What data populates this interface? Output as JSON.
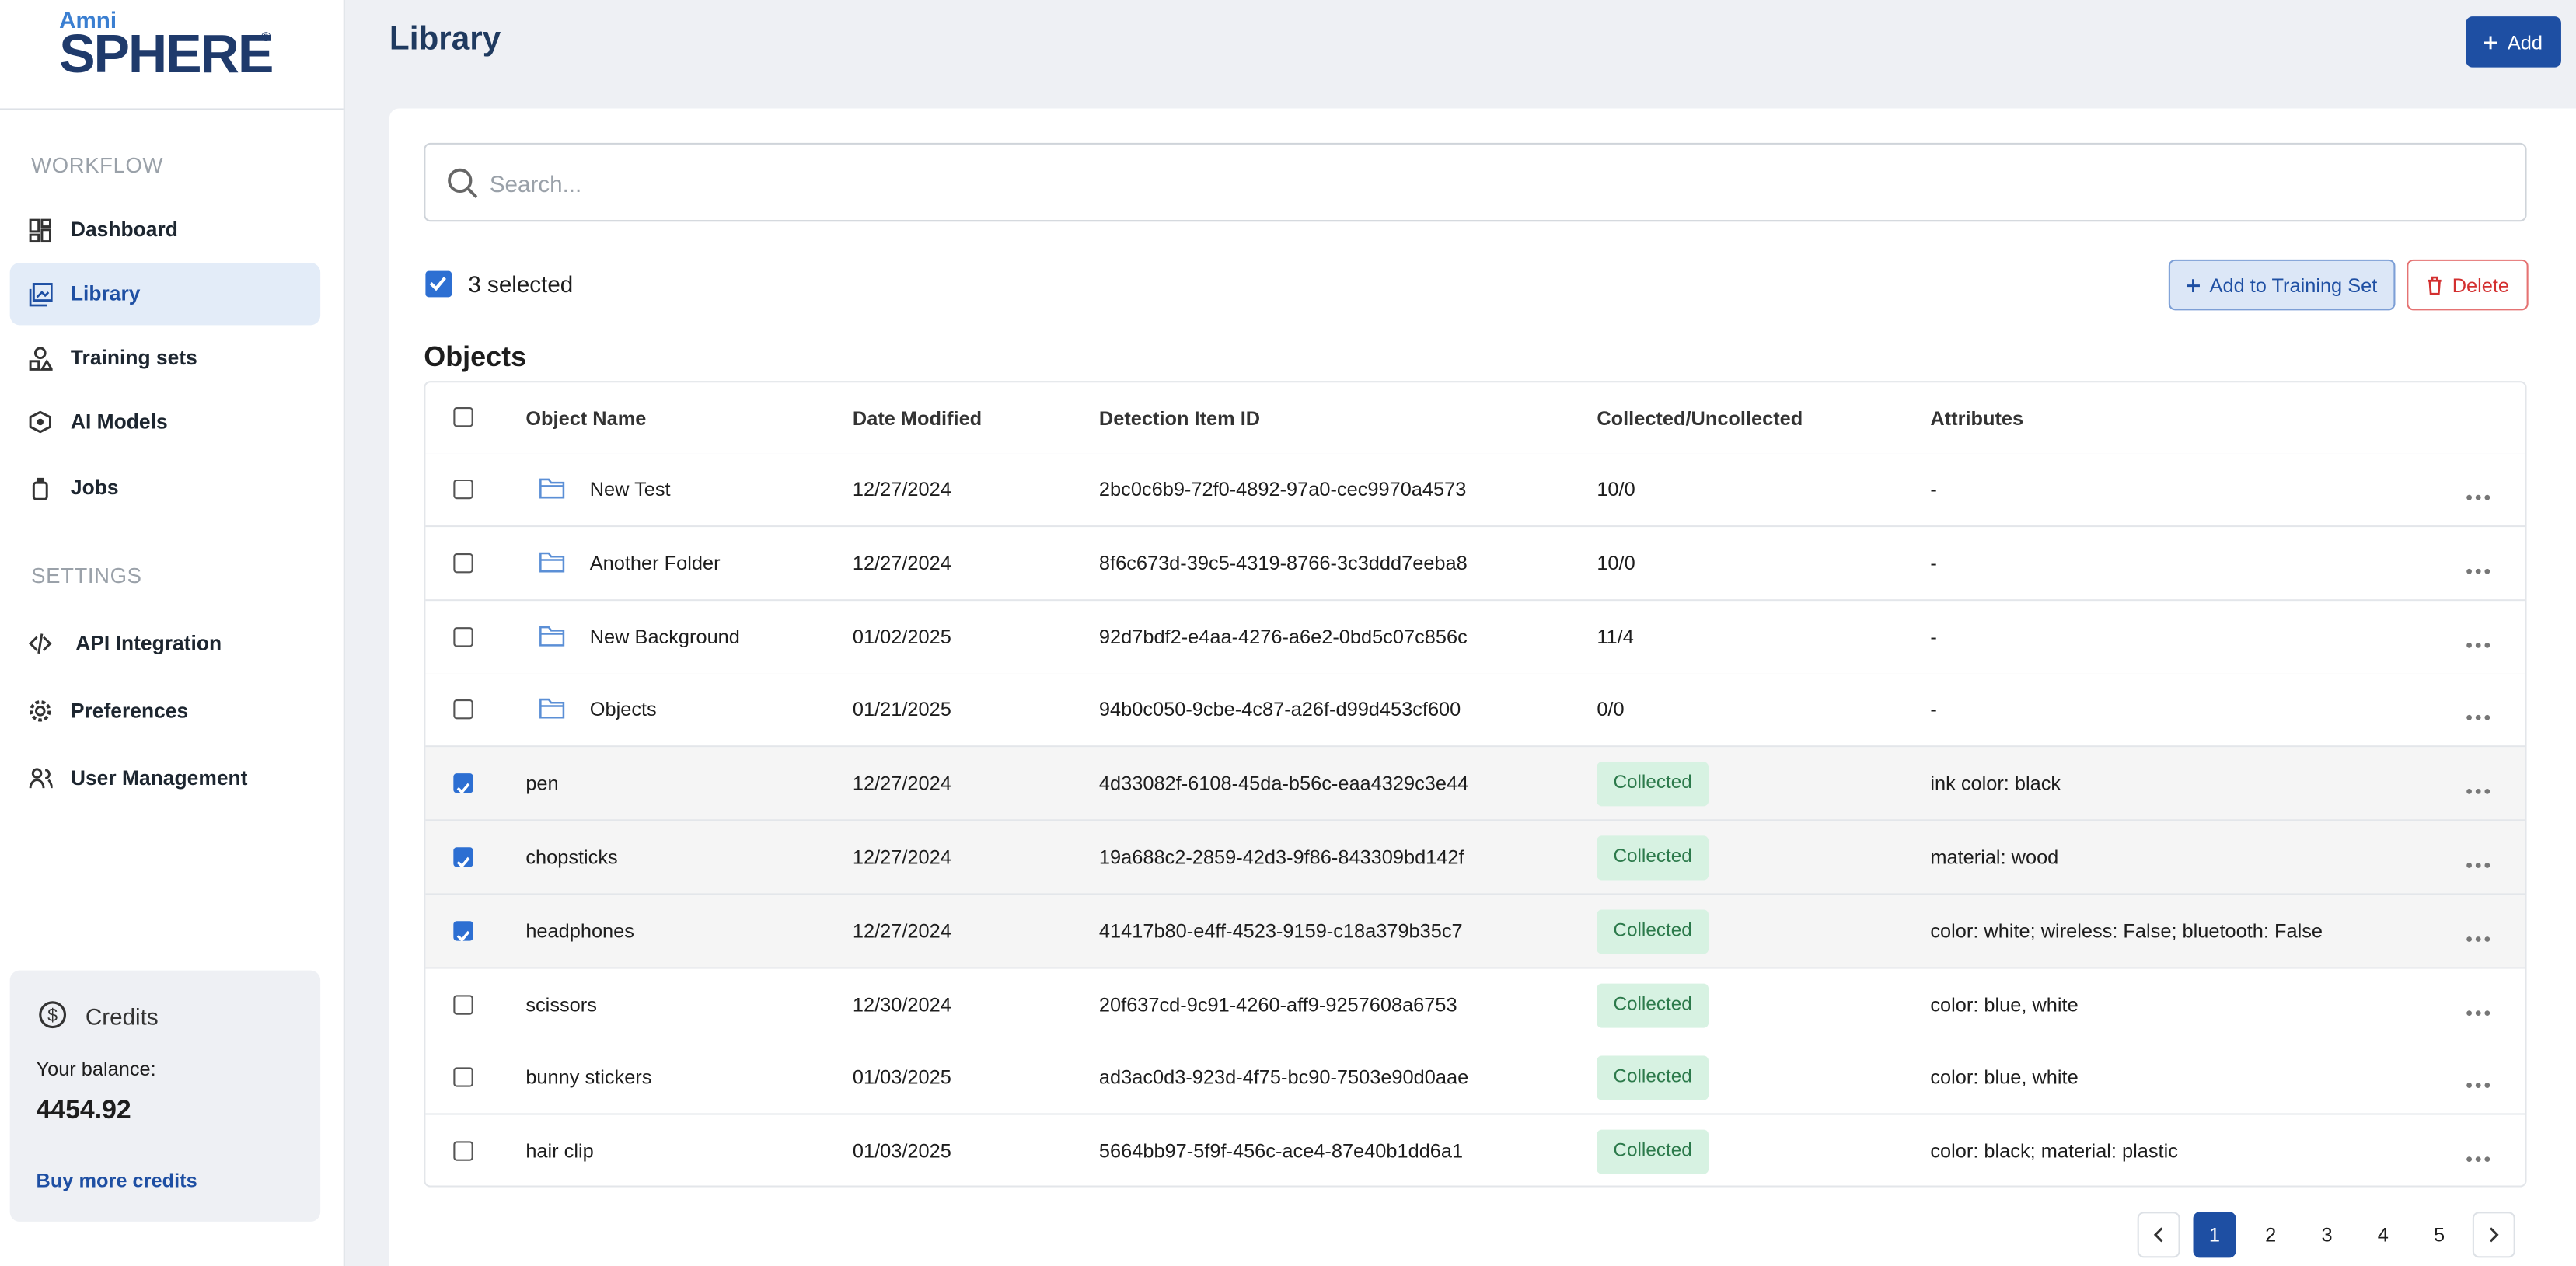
{
  "brand": {
    "small": "Amni",
    "name": "SPHERE",
    "mark": "®"
  },
  "nav": [
    {
      "title": "WORKFLOW",
      "items": [
        "Dashboard",
        "Library",
        "Training sets",
        "AI Models",
        "Jobs"
      ]
    },
    {
      "title": "SETTINGS",
      "items": [
        "API Integration",
        "Preferences",
        "User Management"
      ]
    }
  ],
  "active_nav": "Library",
  "credits": {
    "title": "Credits",
    "balance_label": "Your balance:",
    "balance": "4454.92",
    "link": "Buy more credits"
  },
  "header": {
    "title": "Library",
    "add_button": "Add"
  },
  "search": {
    "placeholder": "Search..."
  },
  "selection": {
    "label": "3 selected",
    "add_to_training": "Add to Training Set",
    "delete": "Delete"
  },
  "table": {
    "title": "Objects",
    "columns": [
      "Object Name",
      "Date Modified",
      "Detection Item ID",
      "Collected/Uncollected",
      "Attributes"
    ],
    "rows": [
      {
        "checked": false,
        "folder": true,
        "name": "New Test",
        "date": "12/27/2024",
        "id": "2bc0c6b9-72f0-4892-97a0-cec9970a4573",
        "status": "10/0",
        "attributes": "-"
      },
      {
        "checked": false,
        "folder": true,
        "name": "Another Folder",
        "date": "12/27/2024",
        "id": "8f6c673d-39c5-4319-8766-3c3ddd7eeba8",
        "status": "10/0",
        "attributes": "-"
      },
      {
        "checked": false,
        "folder": true,
        "name": "New Background",
        "date": "01/02/2025",
        "id": "92d7bdf2-e4aa-4276-a6e2-0bd5c07c856c",
        "status": "11/4",
        "attributes": "-"
      },
      {
        "checked": false,
        "folder": true,
        "name": "Objects",
        "date": "01/21/2025",
        "id": "94b0c050-9cbe-4c87-a26f-d99d453cf600",
        "status": "0/0",
        "attributes": "-"
      },
      {
        "checked": true,
        "folder": false,
        "name": "pen",
        "date": "12/27/2024",
        "id": "4d33082f-6108-45da-b56c-eaa4329c3e44",
        "status": "Collected",
        "attributes": "ink color: black"
      },
      {
        "checked": true,
        "folder": false,
        "name": "chopsticks",
        "date": "12/27/2024",
        "id": "19a688c2-2859-42d3-9f86-843309bd142f",
        "status": "Collected",
        "attributes": "material: wood"
      },
      {
        "checked": true,
        "folder": false,
        "name": "headphones",
        "date": "12/27/2024",
        "id": "41417b80-e4ff-4523-9159-c18a379b35c7",
        "status": "Collected",
        "attributes": "color: white; wireless: False; bluetooth: False"
      },
      {
        "checked": false,
        "folder": false,
        "name": "scissors",
        "date": "12/30/2024",
        "id": "20f637cd-9c91-4260-aff9-9257608a6753",
        "status": "Collected",
        "attributes": "color: blue, white"
      },
      {
        "checked": false,
        "folder": false,
        "name": "bunny stickers",
        "date": "01/03/2025",
        "id": "ad3ac0d3-923d-4f75-bc90-7503e90d0aae",
        "status": "Collected",
        "attributes": "color: blue, white"
      },
      {
        "checked": false,
        "folder": false,
        "name": "hair clip",
        "date": "01/03/2025",
        "id": "5664bb97-5f9f-456c-ace4-87e40b1dd6a1",
        "status": "Collected",
        "attributes": "color: black; material: plastic"
      }
    ]
  },
  "pagination": {
    "pages": [
      1,
      2,
      3,
      4,
      5
    ],
    "current": 1
  }
}
